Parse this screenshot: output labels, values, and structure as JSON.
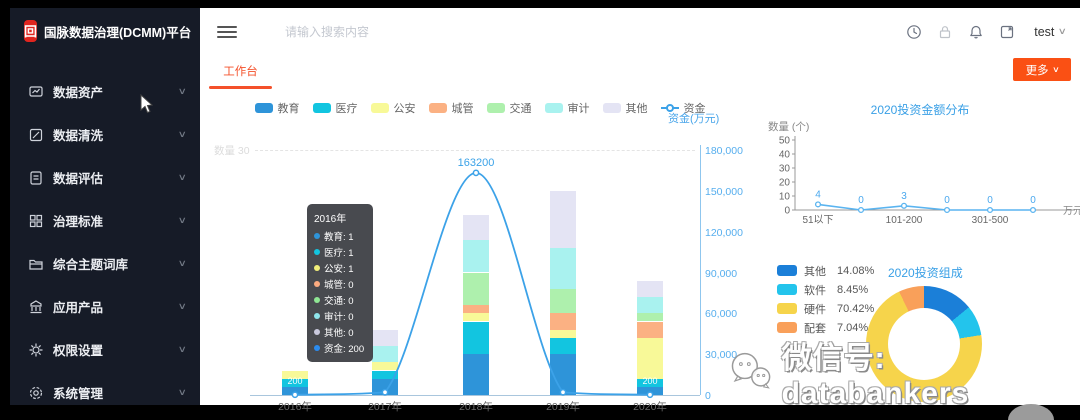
{
  "app": {
    "logo_title": "国脉数据治理(DCMM)平台"
  },
  "sidebar": {
    "items": [
      {
        "label": "数据资产",
        "icon": "data-asset-icon"
      },
      {
        "label": "数据清洗",
        "icon": "data-clean-icon"
      },
      {
        "label": "数据评估",
        "icon": "data-evaluate-icon"
      },
      {
        "label": "治理标准",
        "icon": "governance-standard-icon"
      },
      {
        "label": "综合主题词库",
        "icon": "thesaurus-icon"
      },
      {
        "label": "应用产品",
        "icon": "application-product-icon"
      },
      {
        "label": "权限设置",
        "icon": "permission-icon"
      },
      {
        "label": "系统管理",
        "icon": "system-manage-icon"
      }
    ]
  },
  "header": {
    "search_placeholder": "请输入搜索内容",
    "user": "test",
    "icons": [
      "clock-icon",
      "lock-icon",
      "bell-icon",
      "fullscreen-icon"
    ]
  },
  "tabs": {
    "active": "工作台",
    "more_label": "更多"
  },
  "tooltip": {
    "title": "2016年",
    "rows": [
      {
        "name": "教育",
        "value": "1",
        "color": "#2e94d9"
      },
      {
        "name": "医疗",
        "value": "1",
        "color": "#12c5e0"
      },
      {
        "name": "公安",
        "value": "1",
        "color": "#f2ef7a"
      },
      {
        "name": "城管",
        "value": "0",
        "color": "#fbab80"
      },
      {
        "name": "交通",
        "value": "0",
        "color": "#8fe694"
      },
      {
        "name": "审计",
        "value": "0",
        "color": "#8fe5ec"
      },
      {
        "name": "其他",
        "value": "0",
        "color": "#c9c9dd"
      },
      {
        "name": "资金",
        "value": "200",
        "color": "#2b8cf0"
      }
    ]
  },
  "chart_data": [
    {
      "type": "bar",
      "title": "",
      "categories": [
        "2016年",
        "2017年",
        "2018年",
        "2019年",
        "2020年"
      ],
      "series": [
        {
          "name": "教育",
          "type": "bar",
          "color": "#2e94d9",
          "values": [
            1,
            2,
            5,
            5,
            1
          ]
        },
        {
          "name": "医疗",
          "type": "bar",
          "color": "#12c5e0",
          "values": [
            1,
            1,
            4,
            2,
            1
          ]
        },
        {
          "name": "公安",
          "type": "bar",
          "color": "#f8f998",
          "values": [
            1,
            1,
            1,
            1,
            5
          ]
        },
        {
          "name": "城管",
          "type": "bar",
          "color": "#fbb183",
          "values": [
            0,
            0,
            1,
            2,
            2
          ]
        },
        {
          "name": "交通",
          "type": "bar",
          "color": "#aef0ad",
          "values": [
            0,
            0,
            4,
            3,
            1
          ]
        },
        {
          "name": "审计",
          "type": "bar",
          "color": "#a9f2ef",
          "values": [
            0,
            2,
            4,
            5,
            2
          ]
        },
        {
          "name": "其他",
          "type": "bar",
          "color": "#e4e4f4",
          "values": [
            0,
            2,
            3,
            7,
            2
          ]
        },
        {
          "name": "资金",
          "type": "line",
          "color": "#3ca2e8",
          "values": [
            200,
            2000,
            163200,
            2000,
            200
          ]
        }
      ],
      "y_left": {
        "name": "数量",
        "max": 30,
        "visible_tick": "30"
      },
      "y_right": {
        "name": "资金(万元)",
        "max": 180000,
        "ticks": [
          "180,000",
          "150,000",
          "120,000",
          "90,000",
          "60,000",
          "30,000",
          "0"
        ]
      },
      "visible_point_labels": {
        "0": "200",
        "2": "163200",
        "4": "200"
      },
      "legend_position": "top",
      "grid": "dashed-max-only"
    },
    {
      "type": "line",
      "title": "2020投资金额分布",
      "ylabel": "数量 (个)",
      "xlabel": "万元",
      "categories": [
        "51以下",
        "",
        "101-200",
        "",
        "301-500",
        ""
      ],
      "values": [
        4,
        0,
        3,
        0,
        0,
        0
      ],
      "ylim": [
        0,
        50
      ],
      "yticks": [
        0,
        10,
        20,
        30,
        40,
        50
      ],
      "color": "#5ab4f0"
    },
    {
      "type": "pie",
      "title": "2020投资组成",
      "slices": [
        {
          "name": "其他",
          "pct": 14.08,
          "pct_label": "14.08%",
          "color": "#1b7fd8"
        },
        {
          "name": "软件",
          "pct": 8.45,
          "pct_label": "8.45%",
          "color": "#23c4ec"
        },
        {
          "name": "硬件",
          "pct": 70.42,
          "pct_label": "70.42%",
          "color": "#f6d44b"
        },
        {
          "name": "配套",
          "pct": 7.04,
          "pct_label": "7.04%",
          "color": "#f9a05a"
        }
      ],
      "legend_position": "left",
      "donut": true
    }
  ],
  "watermark": {
    "text": "微信号: databankers",
    "icon": "wechat-icon"
  }
}
